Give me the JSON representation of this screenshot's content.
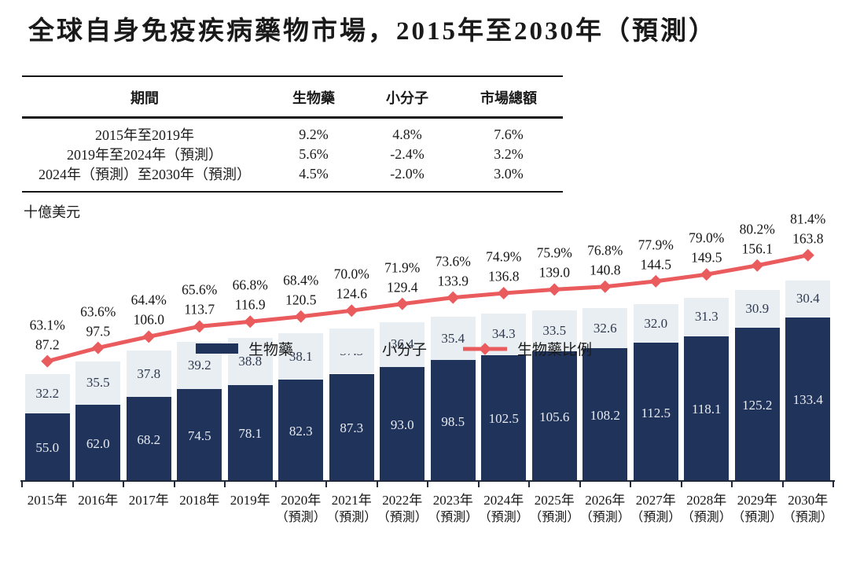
{
  "page": {
    "title": "全球自身免疫疾病藥物市場，2015年至2030年（預測）"
  },
  "cagr_table": {
    "headers": [
      "期間",
      "生物藥",
      "小分子",
      "市場總額"
    ],
    "rows": [
      [
        "2015年至2019年",
        "9.2%",
        "4.8%",
        "7.6%"
      ],
      [
        "2019年至2024年（預測）",
        "5.6%",
        "-2.4%",
        "3.2%"
      ],
      [
        "2024年（預測）至2030年（預測）",
        "4.5%",
        "-2.0%",
        "3.0%"
      ]
    ]
  },
  "chart_data": {
    "type": "bar",
    "subtype": "stacked_bars_with_ratio_line",
    "title": "全球自身免疫疾病藥物市場，2015年至2030年（預測）",
    "unit_label": "十億美元",
    "xlabel": "",
    "ylabel": "十億美元",
    "grid": false,
    "legend_position": "bottom",
    "categories": [
      "2015年",
      "2016年",
      "2017年",
      "2018年",
      "2019年",
      "2020年",
      "2021年",
      "2022年",
      "2023年",
      "2024年",
      "2025年",
      "2026年",
      "2027年",
      "2028年",
      "2029年",
      "2030年"
    ],
    "category_notes": [
      "",
      "",
      "",
      "",
      "",
      "（預測）",
      "（預測）",
      "（預測）",
      "（預測）",
      "（預測）",
      "（預測）",
      "（預測）",
      "（預測）",
      "（預測）",
      "（預測）",
      "（預測）"
    ],
    "series": [
      {
        "name": "生物藥",
        "type": "bar",
        "color": "#20335B",
        "values": [
          55.0,
          62.0,
          68.2,
          74.5,
          78.1,
          82.3,
          87.3,
          93.0,
          98.5,
          102.5,
          105.6,
          108.2,
          112.5,
          118.1,
          125.2,
          133.4
        ]
      },
      {
        "name": "小分子",
        "type": "bar",
        "color": "#E8EEF2",
        "values": [
          32.2,
          35.5,
          37.8,
          39.2,
          38.8,
          38.1,
          37.3,
          36.4,
          35.4,
          34.3,
          33.5,
          32.6,
          32.0,
          31.3,
          30.9,
          30.4
        ]
      },
      {
        "name": "生物藥比例",
        "type": "line",
        "color": "#EA5B5E",
        "values_percent": [
          63.1,
          63.6,
          64.4,
          65.6,
          66.8,
          68.4,
          70.0,
          71.9,
          73.6,
          74.9,
          75.9,
          76.8,
          77.9,
          79.0,
          80.2,
          81.4
        ]
      }
    ],
    "totals": [
      87.2,
      97.5,
      106.0,
      113.7,
      116.9,
      120.5,
      124.6,
      129.4,
      133.9,
      136.8,
      139.0,
      140.8,
      144.5,
      149.5,
      156.1,
      163.8
    ],
    "legend": [
      "生物藥",
      "小分子",
      "生物藥比例"
    ]
  },
  "colors": {
    "biologics": "#20335B",
    "small_molecule": "#E8EEF2",
    "ratio_line": "#EA5B5E",
    "axis": "#20283C",
    "bar_label_on_dark": "#E8EBF1",
    "bar_label_on_light": "#30394E",
    "text": "#161616"
  }
}
